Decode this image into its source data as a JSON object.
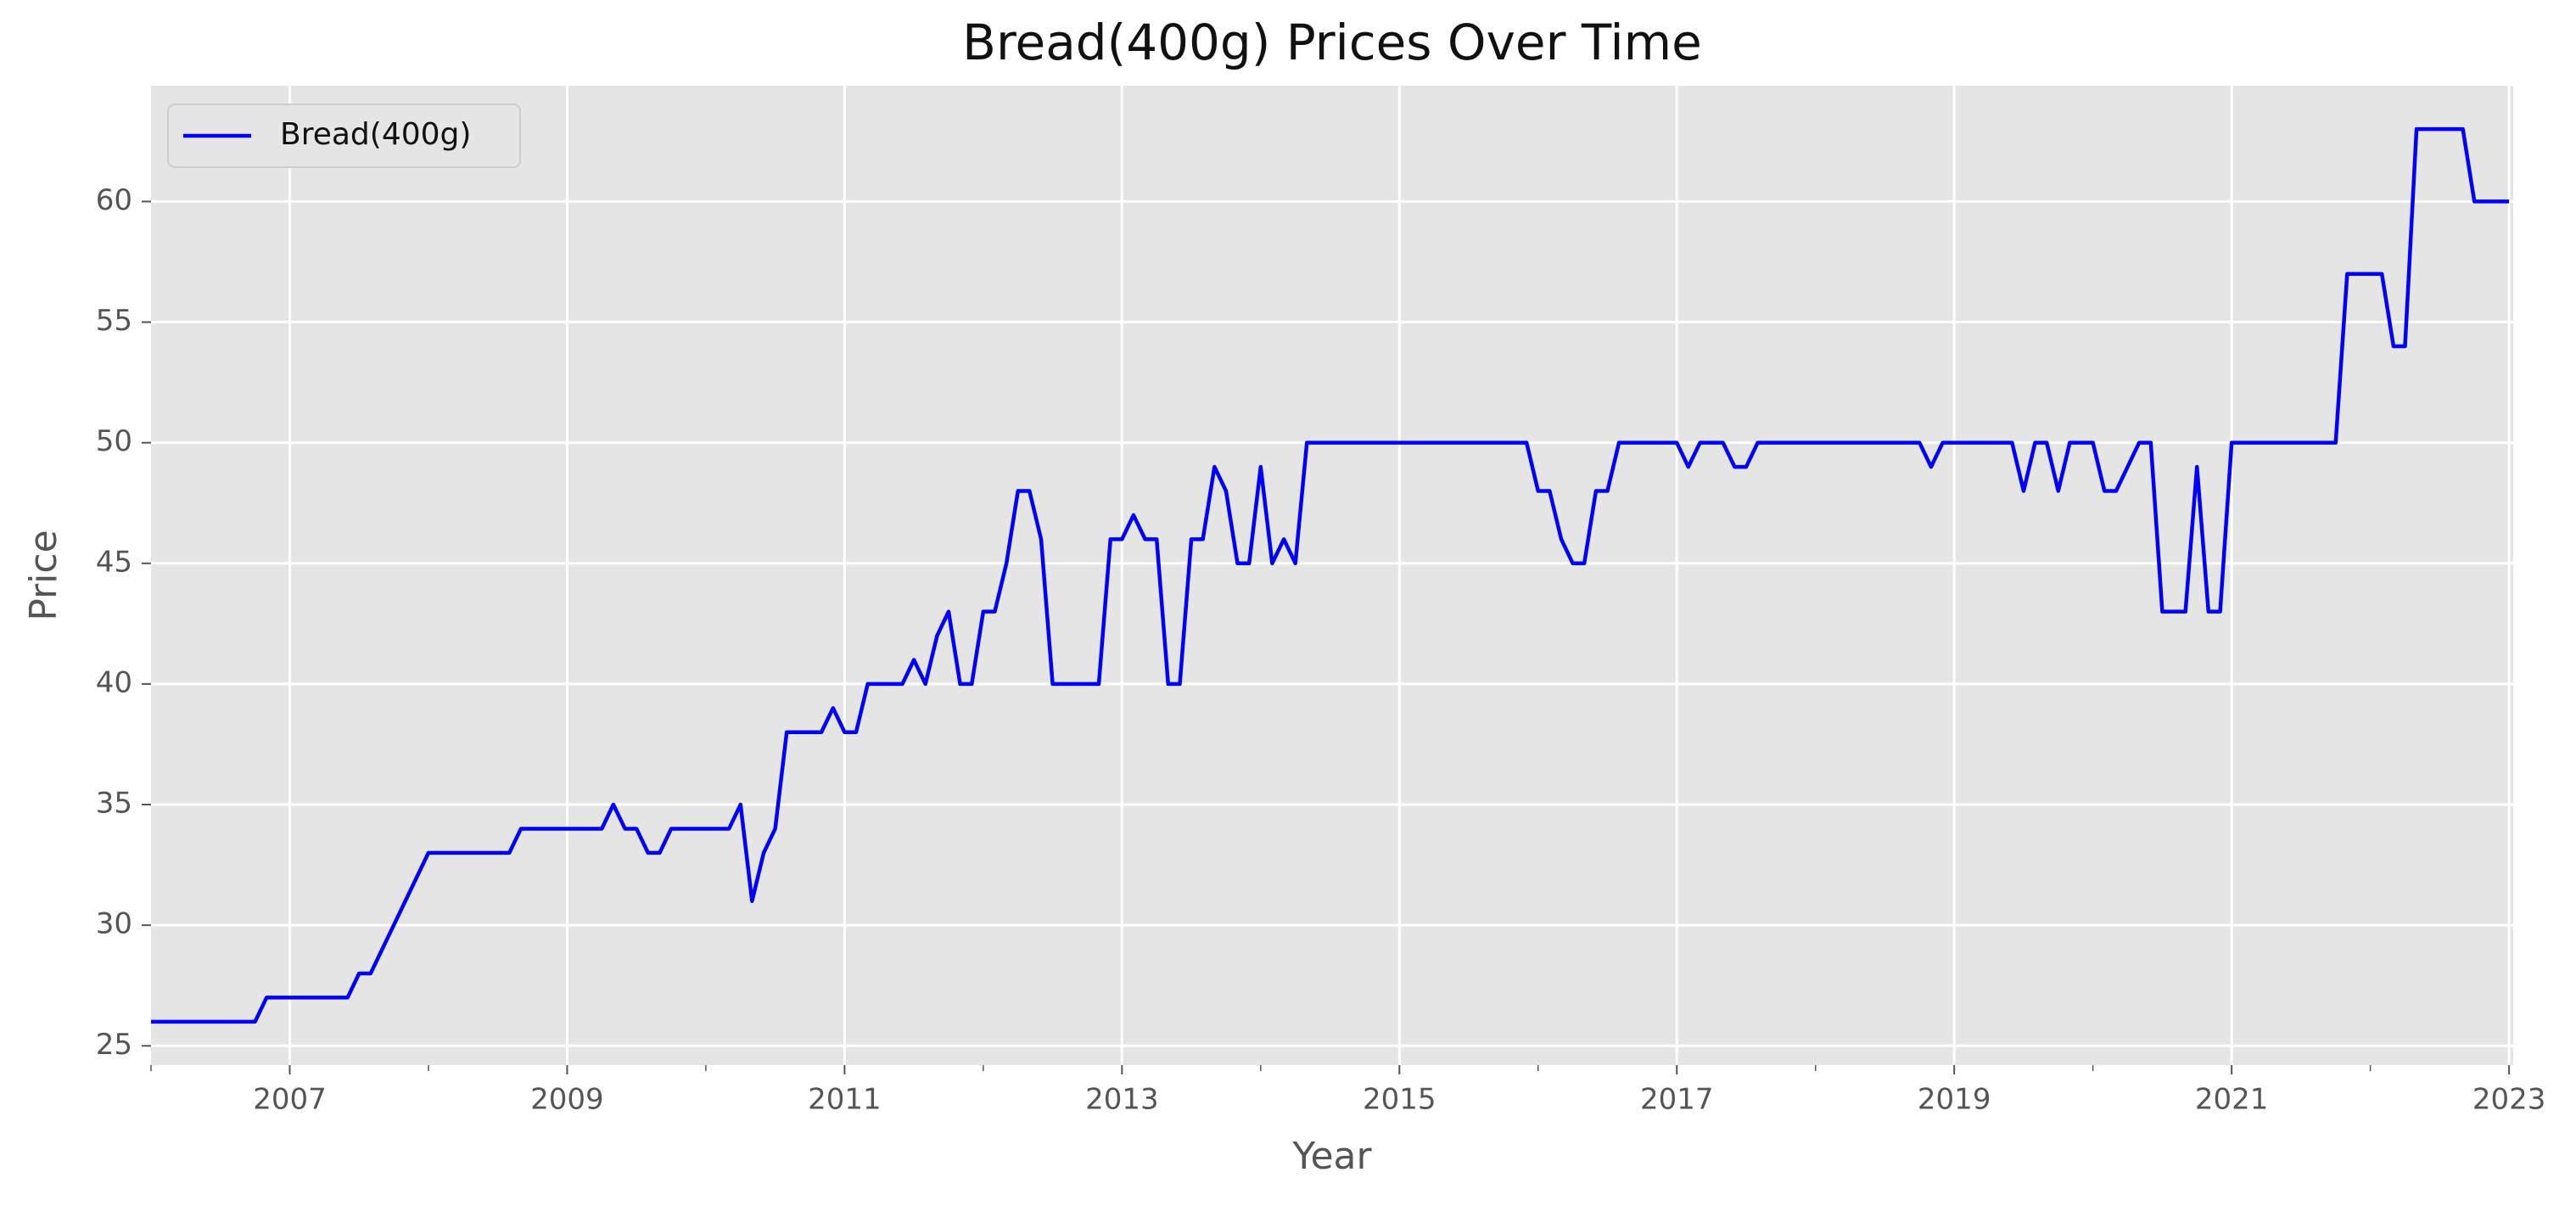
{
  "chart_data": {
    "type": "line",
    "title": "Bread(400g) Prices Over Time",
    "xlabel": "Year",
    "ylabel": "Price",
    "x": [
      2006.0,
      2006.75,
      2006.833,
      2007.417,
      2007.5,
      2007.583,
      2008.0,
      2008.583,
      2008.667,
      2009.25,
      2009.333,
      2009.417,
      2009.5,
      2009.583,
      2009.667,
      2009.75,
      2010.167,
      2010.25,
      2010.333,
      2010.417,
      2010.5,
      2010.583,
      2010.833,
      2010.917,
      2011.0,
      2011.083,
      2011.167,
      2011.417,
      2011.5,
      2011.583,
      2011.667,
      2011.75,
      2011.833,
      2011.917,
      2012.0,
      2012.083,
      2012.167,
      2012.25,
      2012.333,
      2012.417,
      2012.5,
      2012.833,
      2012.917,
      2013.0,
      2013.083,
      2013.167,
      2013.25,
      2013.333,
      2013.417,
      2013.5,
      2013.583,
      2013.667,
      2013.75,
      2013.833,
      2013.917,
      2014.0,
      2014.083,
      2014.167,
      2014.25,
      2014.333,
      2015.917,
      2016.0,
      2016.083,
      2016.167,
      2016.25,
      2016.333,
      2016.417,
      2016.5,
      2016.583,
      2017.0,
      2017.083,
      2017.167,
      2017.333,
      2017.417,
      2017.5,
      2017.583,
      2018.75,
      2018.833,
      2018.917,
      2019.417,
      2019.5,
      2019.583,
      2019.667,
      2019.75,
      2019.833,
      2020.0,
      2020.083,
      2020.167,
      2020.25,
      2020.333,
      2020.417,
      2020.5,
      2020.667,
      2020.75,
      2020.833,
      2020.917,
      2021.0,
      2021.75,
      2021.833,
      2022.083,
      2022.167,
      2022.25,
      2022.333,
      2022.667,
      2022.75,
      2023.0
    ],
    "series": [
      {
        "name": "Bread(400g)",
        "color": "#0000ff",
        "values": [
          26,
          26,
          27,
          27,
          28,
          28,
          33,
          33,
          34,
          34,
          35,
          34,
          34,
          33,
          33,
          34,
          34,
          35,
          31,
          33,
          34,
          38,
          38,
          39,
          38,
          38,
          40,
          40,
          41,
          40,
          42,
          43,
          40,
          40,
          43,
          43,
          45,
          48,
          48,
          46,
          40,
          40,
          46,
          46,
          47,
          46,
          46,
          40,
          40,
          46,
          46,
          49,
          48,
          45,
          45,
          49,
          45,
          46,
          45,
          50,
          50,
          48,
          48,
          46,
          45,
          45,
          48,
          48,
          50,
          50,
          49,
          50,
          50,
          49,
          49,
          50,
          50,
          49,
          50,
          50,
          48,
          50,
          50,
          48,
          50,
          50,
          48,
          48,
          49,
          50,
          50,
          43,
          43,
          49,
          43,
          43,
          50,
          50,
          57,
          57,
          54,
          54,
          63,
          63,
          60,
          60
        ]
      }
    ],
    "xlim": [
      2006.0,
      2023.03
    ],
    "ylim": [
      24.2,
      64.8
    ],
    "xticks": [
      2007,
      2009,
      2011,
      2013,
      2015,
      2017,
      2019,
      2021,
      2023
    ],
    "xminorticks": [
      2006,
      2008,
      2010,
      2012,
      2014,
      2016,
      2018,
      2020,
      2022
    ],
    "yticks": [
      25,
      30,
      35,
      40,
      45,
      50,
      55,
      60
    ],
    "grid": true,
    "legend": "upper left"
  }
}
